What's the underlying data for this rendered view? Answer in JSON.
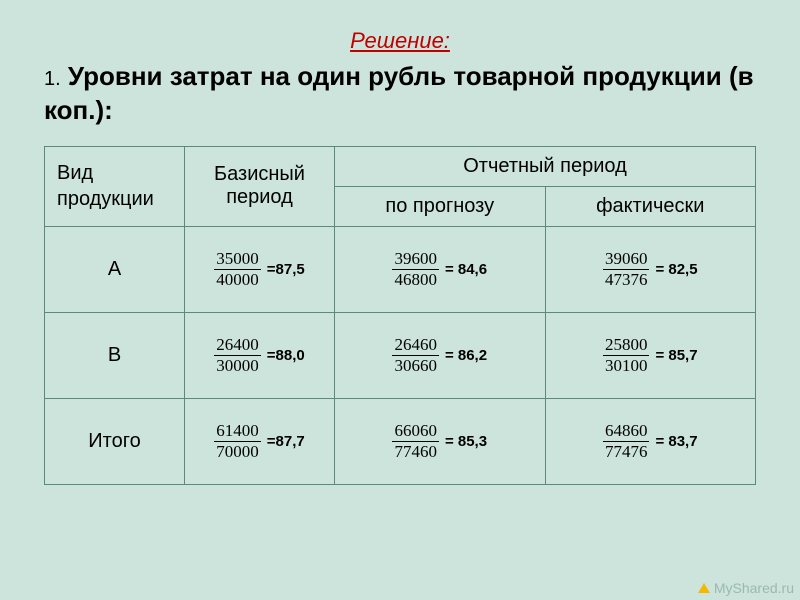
{
  "solution_label": "Решение:",
  "title_num": "1.",
  "title_text": "Уровни затрат на один рубль товарной продукции (в коп.):",
  "headers": {
    "product": "Вид продукции",
    "base": "Базисный период",
    "report": "Отчетный период",
    "forecast": "по прогнозу",
    "actual": "фактически"
  },
  "rows": [
    {
      "label": "А",
      "base": {
        "num": "35000",
        "den": "40000",
        "res": "=87,5"
      },
      "forecast": {
        "num": "39600",
        "den": "46800",
        "res": "= 84,6"
      },
      "actual": {
        "num": "39060",
        "den": "47376",
        "res": "= 82,5"
      }
    },
    {
      "label": "В",
      "base": {
        "num": "26400",
        "den": "30000",
        "res": "=88,0"
      },
      "forecast": {
        "num": "26460",
        "den": "30660",
        "res": "= 86,2"
      },
      "actual": {
        "num": "25800",
        "den": "30100",
        "res": "= 85,7"
      }
    },
    {
      "label": "Итого",
      "base": {
        "num": "61400",
        "den": "70000",
        "res": "=87,7"
      },
      "forecast": {
        "num": "66060",
        "den": "77460",
        "res": "= 85,3"
      },
      "actual": {
        "num": "64860",
        "den": "77476",
        "res": "= 83,7"
      }
    }
  ],
  "watermark": "MyShared.ru"
}
